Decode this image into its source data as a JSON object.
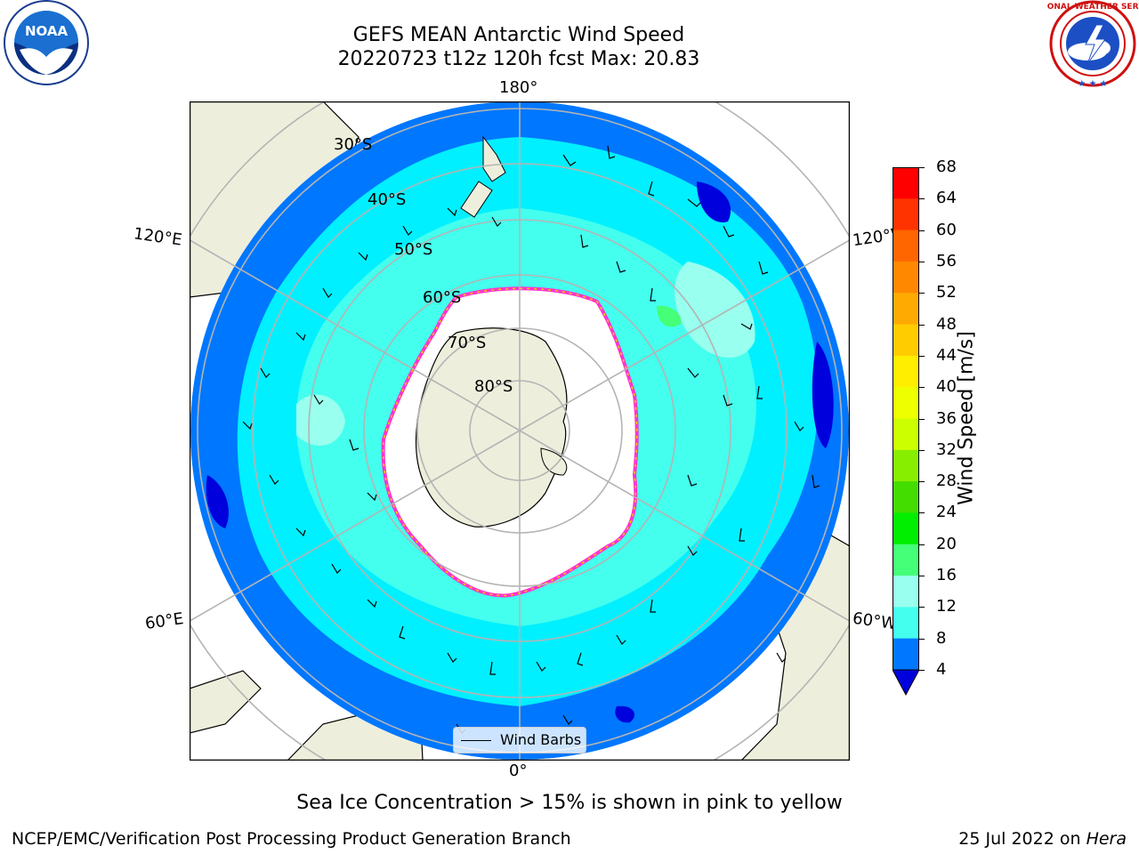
{
  "title": {
    "line1": "GEFS MEAN Antarctic Wind Speed",
    "line2": "20220723 t12z 120h fcst   Max: 20.83"
  },
  "logos": {
    "left": {
      "text": "NOAA",
      "ring_text": "NATIONAL OCEANIC AND ATMOSPHERIC ADMINISTRATION · U.S. DEPARTMENT OF COMMERCE"
    },
    "right": {
      "ring_text": "NATIONAL WEATHER SERVICE"
    }
  },
  "map": {
    "lon_labels": {
      "top": "180°",
      "bottom": "0°",
      "upper_left": "120°E",
      "upper_right": "120°W",
      "lower_left": "60°E",
      "lower_right": "60°W"
    },
    "lat_labels": [
      "30°S",
      "40°S",
      "50°S",
      "60°S",
      "70°S",
      "80°S"
    ],
    "legend": {
      "label": "Wind Barbs"
    }
  },
  "colorbar": {
    "label": "Wind Speed [m/s]",
    "ticks": [
      "68",
      "64",
      "60",
      "56",
      "52",
      "48",
      "44",
      "40",
      "36",
      "32",
      "28",
      "24",
      "20",
      "16",
      "12",
      "8",
      "4"
    ],
    "colors": [
      "#ff0000",
      "#ff3300",
      "#ff6600",
      "#ff8800",
      "#ffaa00",
      "#ffcc00",
      "#ffee00",
      "#eeff00",
      "#ccff00",
      "#88ee00",
      "#44dd00",
      "#00ee00",
      "#44ff77",
      "#99ffee",
      "#44ffee",
      "#00f0ff",
      "#0077ff"
    ],
    "under_color": "#0000dd"
  },
  "footer": {
    "sea_ice_note": "Sea Ice Concentration > 15% is shown in pink to yellow",
    "left": "NCEP/EMC/Verification Post Processing Product Generation Branch",
    "right_prefix": "25 Jul 2022 on ",
    "right_host": "Hera"
  }
}
